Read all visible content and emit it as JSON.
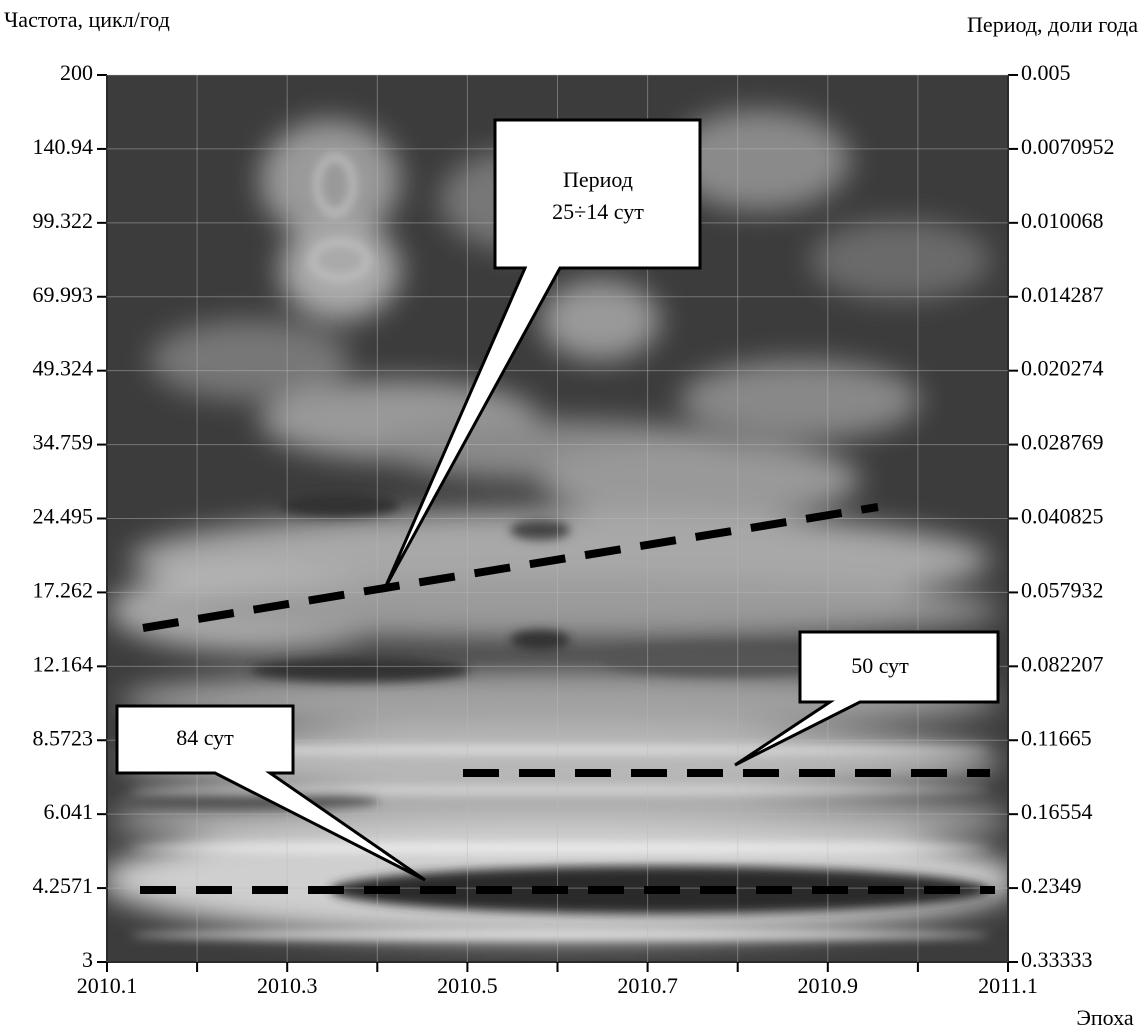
{
  "chart_data": {
    "type": "spectrogram",
    "ylabel": "Частота, цикл/год",
    "y2label": "Период, доли года",
    "xlabel": "Эпоха",
    "xlim": [
      2010.1,
      2011.1
    ],
    "xticks": [
      2010.1,
      2010.3,
      2010.5,
      2010.7,
      2010.9,
      2011.1
    ],
    "xminorticks": [
      2010.2,
      2010.4,
      2010.6,
      2010.8,
      2011.0
    ],
    "ylim": [
      3,
      200
    ],
    "ylog": true,
    "yticks": [
      200,
      140.94,
      99.322,
      69.993,
      49.324,
      34.759,
      24.495,
      17.262,
      12.164,
      8.5723,
      6.041,
      4.2571,
      3
    ],
    "y2lim": [
      0.005,
      0.33333
    ],
    "y2log": true,
    "y2_reversed": true,
    "y2ticks": [
      0.005,
      0.0070952,
      0.010068,
      0.014287,
      0.020274,
      0.028769,
      0.040825,
      0.057932,
      0.082207,
      0.11665,
      0.16554,
      0.2349,
      0.33333
    ],
    "grid": true,
    "annotations": [
      "Период",
      "25÷14 сут",
      "50 сут",
      "84 сут"
    ]
  }
}
